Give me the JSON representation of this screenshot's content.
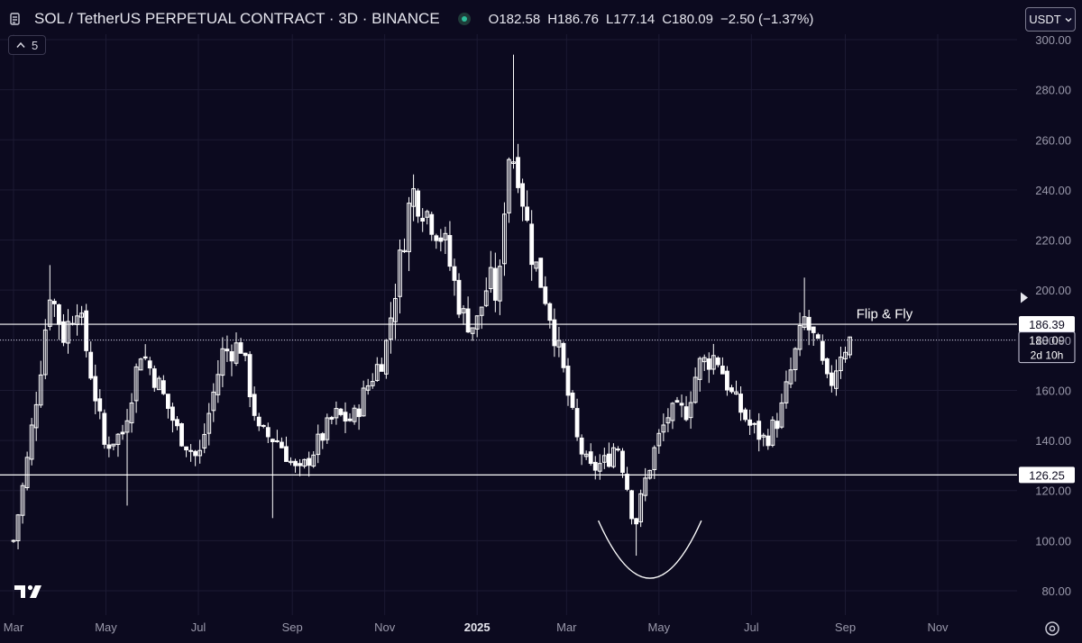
{
  "header": {
    "symbol_title": "SOL / TetherUS PERPETUAL CONTRACT · 3D · BINANCE",
    "open_label": "O",
    "open": "182.58",
    "high_label": "H",
    "high": "186.76",
    "low_label": "L",
    "low": "177.14",
    "close_label": "C",
    "close": "180.09",
    "change": "−2.50 (−1.37%)"
  },
  "indicator_toggle": {
    "count": "5"
  },
  "currency": {
    "label": "USDT"
  },
  "colors": {
    "background": "#0c0a1f",
    "candle_up": "#ffffff",
    "candle_down": "#ffffff",
    "grid": "#1c1a33",
    "line": "#ffffff",
    "axis_text": "#9a99ab"
  },
  "chart_data": {
    "type": "candlestick",
    "timeframe": "3D",
    "ylim": [
      75,
      302
    ],
    "y_ticks": [
      "300.00",
      "280.00",
      "260.00",
      "240.00",
      "220.00",
      "200.00",
      "180.00",
      "160.00",
      "140.00",
      "120.00",
      "100.00",
      "80.00"
    ],
    "y_tick_values": [
      300,
      280,
      260,
      240,
      220,
      200,
      180,
      160,
      140,
      120,
      100,
      80
    ],
    "x_ticks": [
      "Mar",
      "May",
      "Jul",
      "Sep",
      "Nov",
      "2025",
      "Mar",
      "May",
      "Jul",
      "Sep",
      "Nov"
    ],
    "x_tick_days": [
      0,
      61,
      122,
      184,
      245,
      306,
      365,
      426,
      487,
      549,
      610
    ],
    "horizontal_lines": [
      {
        "price": 186.39,
        "label": "186.39"
      },
      {
        "price": 126.25,
        "label": "126.25"
      }
    ],
    "last_price": {
      "price": 180.09,
      "label": "180.09",
      "countdown": "2d 10h"
    },
    "annotations": [
      {
        "text": "Flip & Fly",
        "price": 190.5
      }
    ],
    "curve_annotation": {
      "start_day": 386,
      "start_price": 108,
      "bottom_day": 420,
      "bottom_price": 85,
      "end_day": 454,
      "end_price": 108
    },
    "price_path": [
      {
        "day": 0,
        "price": 100
      },
      {
        "day": 9,
        "price": 132
      },
      {
        "day": 18,
        "price": 170
      },
      {
        "day": 24,
        "price": 200
      },
      {
        "day": 33,
        "price": 182
      },
      {
        "day": 42,
        "price": 195
      },
      {
        "day": 54,
        "price": 158
      },
      {
        "day": 60,
        "price": 138
      },
      {
        "day": 72,
        "price": 143
      },
      {
        "day": 84,
        "price": 176
      },
      {
        "day": 96,
        "price": 162
      },
      {
        "day": 108,
        "price": 144
      },
      {
        "day": 122,
        "price": 132
      },
      {
        "day": 138,
        "price": 175
      },
      {
        "day": 150,
        "price": 178
      },
      {
        "day": 162,
        "price": 143
      },
      {
        "day": 175,
        "price": 140
      },
      {
        "day": 188,
        "price": 126
      },
      {
        "day": 200,
        "price": 138
      },
      {
        "day": 212,
        "price": 150
      },
      {
        "day": 224,
        "price": 148
      },
      {
        "day": 236,
        "price": 165
      },
      {
        "day": 245,
        "price": 175
      },
      {
        "day": 254,
        "price": 208
      },
      {
        "day": 263,
        "price": 240
      },
      {
        "day": 272,
        "price": 232
      },
      {
        "day": 284,
        "price": 220
      },
      {
        "day": 296,
        "price": 190
      },
      {
        "day": 305,
        "price": 185
      },
      {
        "day": 314,
        "price": 205
      },
      {
        "day": 320,
        "price": 195
      },
      {
        "day": 326,
        "price": 255
      },
      {
        "day": 332,
        "price": 252
      },
      {
        "day": 342,
        "price": 215
      },
      {
        "day": 352,
        "price": 196
      },
      {
        "day": 362,
        "price": 170
      },
      {
        "day": 372,
        "price": 140
      },
      {
        "day": 380,
        "price": 128
      },
      {
        "day": 392,
        "price": 132
      },
      {
        "day": 398,
        "price": 140
      },
      {
        "day": 404,
        "price": 125
      },
      {
        "day": 410,
        "price": 105
      },
      {
        "day": 416,
        "price": 122
      },
      {
        "day": 424,
        "price": 138
      },
      {
        "day": 432,
        "price": 150
      },
      {
        "day": 444,
        "price": 152
      },
      {
        "day": 452,
        "price": 170
      },
      {
        "day": 464,
        "price": 174
      },
      {
        "day": 474,
        "price": 158
      },
      {
        "day": 486,
        "price": 146
      },
      {
        "day": 496,
        "price": 140
      },
      {
        "day": 506,
        "price": 150
      },
      {
        "day": 514,
        "price": 170
      },
      {
        "day": 522,
        "price": 188
      },
      {
        "day": 530,
        "price": 178
      },
      {
        "day": 538,
        "price": 160
      },
      {
        "day": 546,
        "price": 176
      },
      {
        "day": 552,
        "price": 180
      }
    ],
    "spikes": [
      {
        "day": 24,
        "high": 210
      },
      {
        "day": 329,
        "high": 294
      },
      {
        "day": 521,
        "high": 205
      },
      {
        "day": 411,
        "low": 94
      },
      {
        "day": 171,
        "low": 109
      },
      {
        "day": 75,
        "low": 114
      }
    ]
  }
}
